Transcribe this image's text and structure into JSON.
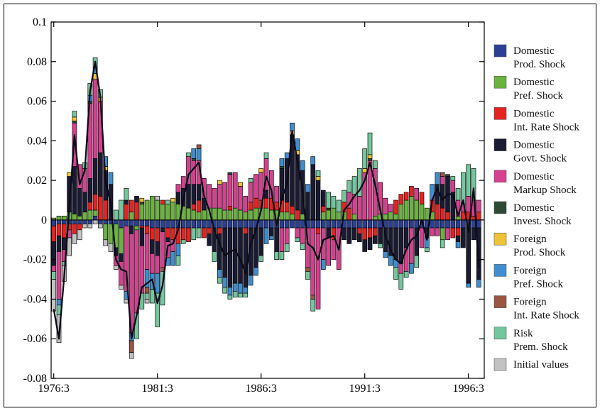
{
  "figure": {
    "background": "#ffffff",
    "border_color": "#000000"
  },
  "chart_data": {
    "type": "stacked-bar-line",
    "title": "",
    "x_start": "1976:3",
    "x_frequency": "quarterly",
    "n_points": 83,
    "x_tick_labels": [
      "1976:3",
      "1981:3",
      "1986:3",
      "1991:3",
      "1996:3"
    ],
    "x_tick_indices": [
      0,
      20,
      40,
      60,
      80
    ],
    "y_tick_labels": [
      "0.1",
      "0.08",
      "0.06",
      "0.04",
      "0.02",
      "0",
      "-0.02",
      "-0.04",
      "-0.06",
      "-0.08"
    ],
    "y_tick_values": [
      0.1,
      0.08,
      0.06,
      0.04,
      0.02,
      0,
      -0.02,
      -0.04,
      -0.06,
      -0.08
    ],
    "ylim": [
      -0.08,
      0.1
    ],
    "grid": false,
    "legend_position": "right-outside",
    "value_scale": 0.001,
    "total_line": {
      "label": "total (sum of all shock contributions)",
      "color": "#0b0b18",
      "source": "sum_of_series"
    },
    "series": [
      {
        "name": "Domestic Prod. Shock",
        "label_lines": [
          "Domestic",
          "Prod. Shock"
        ],
        "color": "#2b3f94",
        "values": [
          -3,
          -2,
          -2,
          -2,
          -2,
          -2,
          -2,
          -2,
          2,
          -2,
          -2,
          -2,
          -2,
          -4,
          -3,
          -3,
          -3,
          -3,
          -3,
          -4,
          -4,
          -4,
          -4,
          -4,
          -4,
          -4,
          -4,
          -4,
          -4,
          -4,
          -4,
          -4,
          -4,
          -4,
          -4,
          -4,
          -4,
          -4,
          -4,
          -4,
          -4,
          -4,
          -4,
          -4,
          -4,
          -4,
          -4,
          -4,
          -4,
          -4,
          -4,
          -4,
          -4,
          -4,
          -4,
          -4,
          -4,
          -4,
          -4,
          -4,
          -4,
          -4,
          -4,
          -4,
          -4,
          -4,
          -4,
          -4,
          -4,
          -4,
          -4,
          -4,
          -4,
          -4,
          -4,
          -4,
          -4,
          -4,
          -4,
          -4,
          -4,
          -4,
          -4
        ]
      },
      {
        "name": "Domestic Pref. Shock",
        "label_lines": [
          "Domestic",
          "Pref. Shock"
        ],
        "color": "#6ab33e",
        "values": [
          1,
          2,
          2,
          4,
          3,
          2,
          4,
          5,
          3,
          0,
          -8,
          -10,
          -12,
          -13,
          0,
          4,
          -2,
          8,
          10,
          12,
          10,
          8,
          8,
          9,
          8,
          7,
          6,
          5,
          4,
          5,
          6,
          6,
          6,
          5,
          5,
          6,
          5,
          4,
          5,
          6,
          6,
          6,
          5,
          5,
          4,
          4,
          3,
          0,
          3,
          0,
          0,
          0,
          4,
          5,
          6,
          4,
          4,
          0,
          3,
          0,
          0,
          0,
          2,
          3,
          3,
          4,
          3,
          8,
          10,
          12,
          10,
          8,
          6,
          4,
          0,
          -6,
          0,
          0,
          2,
          0,
          0,
          0,
          0
        ]
      },
      {
        "name": "Domestic Int. Rate Shock",
        "label_lines": [
          "Domestic",
          "Int. Rate Shock"
        ],
        "color": "#e52320",
        "values": [
          -8,
          -6,
          -7,
          -3,
          -5,
          -3,
          0,
          4,
          8,
          12,
          10,
          0,
          0,
          0,
          8,
          6,
          9,
          -1,
          -4,
          -6,
          -7,
          2,
          -5,
          -6,
          -8,
          -6,
          -7,
          3,
          6,
          -5,
          -3,
          0,
          -3,
          0,
          2,
          0,
          0,
          -3,
          4,
          5,
          4,
          5,
          6,
          4,
          6,
          5,
          4,
          5,
          0,
          0,
          0,
          -3,
          3,
          0,
          -6,
          0,
          5,
          6,
          0,
          -3,
          -6,
          -5,
          -4,
          0,
          0,
          0,
          7,
          5,
          4,
          5,
          0,
          6,
          0,
          6,
          8,
          6,
          4,
          -5,
          -4,
          4,
          4,
          2,
          4
        ]
      },
      {
        "name": "Domestic Govt. Shock",
        "label_lines": [
          "Domestic",
          "Govt. Shock"
        ],
        "color": "#1a1a32",
        "values": [
          -12,
          -8,
          -6,
          18,
          24,
          14,
          10,
          12,
          18,
          22,
          15,
          18,
          -4,
          -4,
          2,
          -4,
          3,
          -9,
          0,
          -7,
          -7,
          -2,
          -2,
          0,
          6,
          9,
          12,
          10,
          8,
          6,
          -6,
          -12,
          -18,
          -25,
          -30,
          -28,
          -28,
          -27,
          -24,
          -20,
          -14,
          4,
          -4,
          -12,
          16,
          22,
          36,
          28,
          22,
          14,
          28,
          20,
          8,
          -5,
          0,
          0,
          -6,
          -8,
          -6,
          -4,
          -6,
          -6,
          -4,
          -8,
          -12,
          -14,
          -16,
          -18,
          -10,
          0,
          -14,
          0,
          -5,
          0,
          10,
          12,
          18,
          14,
          -3,
          -10,
          -28,
          -6,
          -26
        ]
      },
      {
        "name": "Domestic Markup Shock",
        "label_lines": [
          "Domestic",
          "Markup Shock"
        ],
        "color": "#d6418f",
        "values": [
          -3,
          -24,
          -6,
          -4,
          22,
          12,
          12,
          38,
          40,
          26,
          0,
          0,
          -5,
          -12,
          -33,
          -50,
          -42,
          -24,
          -18,
          -10,
          -9,
          -18,
          -8,
          -6,
          4,
          6,
          14,
          12,
          12,
          10,
          12,
          10,
          12,
          14,
          16,
          18,
          12,
          8,
          10,
          12,
          14,
          16,
          14,
          8,
          -12,
          -8,
          0,
          -5,
          -8,
          -20,
          -34,
          -38,
          -16,
          -14,
          -10,
          -21,
          0,
          8,
          10,
          12,
          24,
          30,
          24,
          16,
          8,
          4,
          0,
          -5,
          -12,
          -18,
          6,
          -10,
          0,
          -4,
          -4,
          4,
          -6,
          6,
          8,
          4,
          8,
          8,
          6
        ]
      },
      {
        "name": "Domestic Invest. Shock",
        "label_lines": [
          "Domestic",
          "Invest. Shock"
        ],
        "color": "#2d4a36",
        "values": [
          0,
          0,
          0,
          0,
          1,
          0,
          0,
          1,
          0,
          0,
          0,
          0,
          0,
          0,
          0,
          0,
          0,
          1,
          0,
          0,
          0,
          0,
          0,
          0,
          0,
          0,
          0,
          1,
          0,
          0,
          0,
          0,
          0,
          0,
          1,
          0,
          0,
          0,
          0,
          0,
          0,
          0,
          0,
          0,
          1,
          0,
          0,
          0,
          0,
          0,
          0,
          0,
          0,
          1,
          0,
          0,
          0,
          0,
          0,
          0,
          0,
          1,
          0,
          0,
          0,
          0,
          0,
          0,
          0,
          0,
          0,
          0,
          0,
          0,
          0,
          0,
          1,
          0,
          0,
          0,
          0,
          0,
          0
        ]
      },
      {
        "name": "Foreign Prod. Shock",
        "label_lines": [
          "Foreign",
          "Prod. Shock"
        ],
        "color": "#eec437",
        "values": [
          0,
          0,
          0,
          2,
          2,
          0,
          0,
          0,
          3,
          2,
          2,
          0,
          0,
          0,
          0,
          0,
          0,
          2,
          0,
          0,
          0,
          0,
          0,
          2,
          0,
          0,
          0,
          0,
          0,
          0,
          0,
          0,
          2,
          0,
          0,
          0,
          2,
          0,
          0,
          0,
          2,
          0,
          0,
          0,
          0,
          0,
          2,
          2,
          0,
          0,
          0,
          2,
          0,
          0,
          0,
          0,
          0,
          0,
          0,
          0,
          2,
          2,
          0,
          0,
          0,
          0,
          0,
          0,
          0,
          0,
          0,
          0,
          0,
          0,
          0,
          0,
          0,
          0,
          0,
          0,
          0,
          0,
          0
        ]
      },
      {
        "name": "Foreign Pref. Shock",
        "label_lines": [
          "Foreign",
          "Pref. Shock"
        ],
        "color": "#3e8ed0",
        "values": [
          0,
          -3,
          0,
          0,
          0,
          0,
          0,
          3,
          3,
          0,
          5,
          6,
          0,
          0,
          -4,
          -4,
          0,
          0,
          -9,
          -8,
          -10,
          0,
          -4,
          -7,
          -6,
          0,
          0,
          5,
          6,
          0,
          0,
          0,
          -4,
          -5,
          -4,
          -4,
          -5,
          -3,
          -5,
          -4,
          0,
          -8,
          -2,
          0,
          4,
          3,
          4,
          6,
          5,
          4,
          4,
          0,
          -5,
          0,
          0,
          0,
          0,
          0,
          0,
          0,
          0,
          0,
          0,
          0,
          -3,
          -5,
          -4,
          0,
          0,
          -5,
          0,
          0,
          -5,
          8,
          6,
          0,
          0,
          0,
          -3,
          0,
          -2,
          0,
          -4
        ]
      },
      {
        "name": "Foreign Int. Rate Shock",
        "label_lines": [
          "Foreign",
          "Int. Rate Shock"
        ],
        "color": "#9a5543",
        "values": [
          0,
          0,
          0,
          0,
          0,
          0,
          0,
          0,
          0,
          0,
          0,
          0,
          0,
          0,
          0,
          -6,
          0,
          0,
          -3,
          0,
          0,
          -2,
          0,
          0,
          0,
          0,
          0,
          0,
          2,
          0,
          0,
          0,
          0,
          0,
          0,
          0,
          0,
          0,
          0,
          0,
          0,
          0,
          0,
          0,
          0,
          0,
          0,
          0,
          0,
          -2,
          -2,
          0,
          0,
          0,
          0,
          0,
          0,
          0,
          0,
          0,
          0,
          0,
          0,
          0,
          0,
          0,
          0,
          0,
          0,
          0,
          0,
          0,
          0,
          0,
          0,
          2,
          0,
          0,
          0,
          0,
          0,
          0,
          0
        ]
      },
      {
        "name": "Risk Prem. Shock",
        "label_lines": [
          "Risk",
          "Prem. Shock"
        ],
        "color": "#74c69d",
        "values": [
          -4,
          -5,
          -2,
          0,
          3,
          0,
          3,
          6,
          5,
          4,
          0,
          0,
          5,
          10,
          6,
          0,
          -13,
          -8,
          -3,
          -7,
          -17,
          -17,
          2,
          0,
          -5,
          -2,
          2,
          -6,
          -5,
          0,
          0,
          -5,
          -3,
          -3,
          -2,
          -3,
          -2,
          -2,
          2,
          0,
          -3,
          3,
          0,
          -4,
          -4,
          -4,
          0,
          -2,
          -3,
          -4,
          -6,
          3,
          0,
          8,
          6,
          6,
          6,
          6,
          9,
          14,
          10,
          11,
          4,
          -2,
          0,
          0,
          -6,
          -8,
          -3,
          0,
          -6,
          0,
          -2,
          0,
          0,
          -4,
          0,
          2,
          6,
          16,
          16,
          16,
          0
        ]
      },
      {
        "name": "Initial values",
        "label_lines": [
          "Initial values"
        ],
        "color": "#c2c2c2",
        "values": [
          -16,
          -14,
          -8,
          -9,
          -5,
          -5,
          -2,
          -2,
          -2,
          -2,
          -3,
          -4,
          -2,
          -2,
          -2,
          -3,
          0,
          0,
          -2,
          0,
          2,
          0,
          0,
          0,
          0,
          0,
          0,
          0,
          0,
          0,
          0,
          0,
          0,
          0,
          0,
          0,
          0,
          0,
          0,
          0,
          0,
          0,
          0,
          0,
          0,
          0,
          0,
          0,
          0,
          0,
          0,
          0,
          0,
          0,
          0,
          0,
          0,
          0,
          0,
          0,
          0,
          0,
          0,
          0,
          0,
          0,
          0,
          0,
          0,
          0,
          0,
          0,
          0,
          0,
          0,
          0,
          0,
          0,
          0,
          0,
          0,
          0,
          0
        ]
      }
    ]
  }
}
